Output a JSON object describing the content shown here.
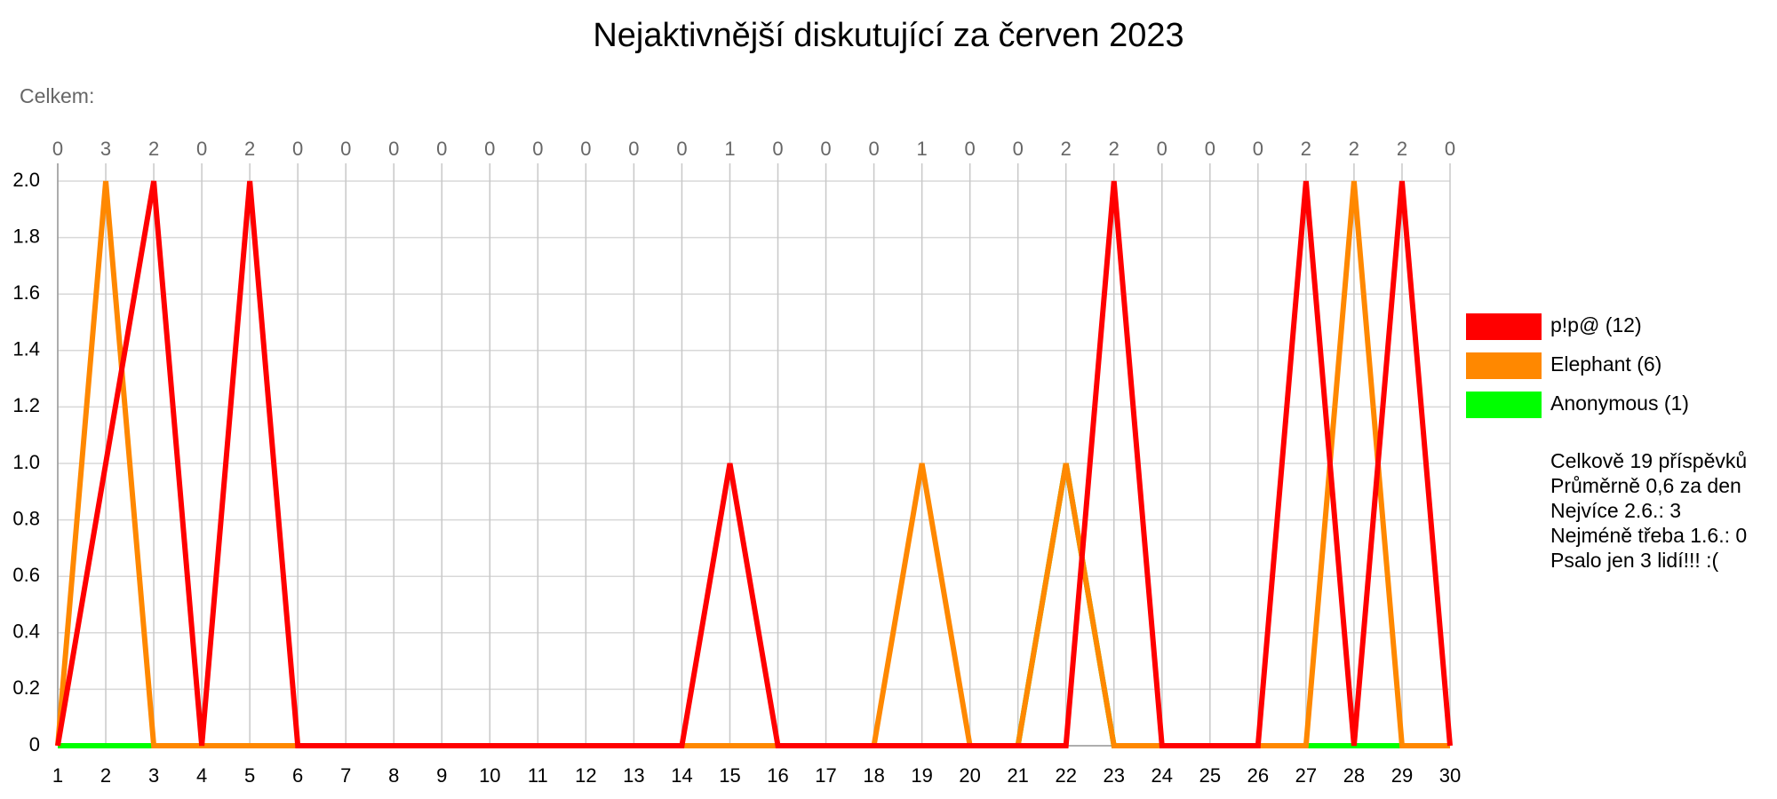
{
  "chart_data": {
    "type": "line",
    "title": "Nejaktivnější diskutující za červen 2023",
    "subtitle": "Celkem:",
    "x": [
      1,
      2,
      3,
      4,
      5,
      6,
      7,
      8,
      9,
      10,
      11,
      12,
      13,
      14,
      15,
      16,
      17,
      18,
      19,
      20,
      21,
      22,
      23,
      24,
      25,
      26,
      27,
      28,
      29,
      30
    ],
    "totals": [
      0,
      3,
      2,
      0,
      2,
      0,
      0,
      0,
      0,
      0,
      0,
      0,
      0,
      0,
      1,
      0,
      0,
      0,
      1,
      0,
      0,
      2,
      2,
      0,
      0,
      0,
      2,
      2,
      2,
      0
    ],
    "xlim": [
      1,
      30
    ],
    "ylim": [
      0,
      2
    ],
    "yticks": [
      0,
      0.2,
      0.4,
      0.6,
      0.8,
      {
        "value": 1,
        "label": "1.0"
      },
      1.2,
      1.4,
      1.6,
      1.8,
      {
        "value": 2,
        "label": "2.0"
      }
    ],
    "grid": true,
    "legend": "right",
    "series": [
      {
        "name": "Anonymous (1)",
        "color": "#00ff00",
        "values": [
          0,
          0,
          0,
          0,
          0,
          0,
          0,
          0,
          0,
          0,
          0,
          0,
          0,
          0,
          0,
          0,
          0,
          0,
          0,
          0,
          0,
          1,
          0,
          0,
          0,
          0,
          0,
          0,
          0,
          0
        ]
      },
      {
        "name": "Elephant (6)",
        "color": "#ff8800",
        "values": [
          0,
          2,
          0,
          0,
          0,
          0,
          0,
          0,
          0,
          0,
          0,
          0,
          0,
          0,
          0,
          0,
          0,
          0,
          1,
          0,
          0,
          1,
          0,
          0,
          0,
          0,
          0,
          2,
          0,
          0
        ]
      },
      {
        "name": "p!p@ (12)",
        "color": "#ff0000",
        "values": [
          0,
          1,
          2,
          0,
          2,
          0,
          0,
          0,
          0,
          0,
          0,
          0,
          0,
          0,
          1,
          0,
          0,
          0,
          0,
          0,
          0,
          0,
          2,
          0,
          0,
          0,
          2,
          0,
          2,
          0
        ]
      }
    ],
    "stats": [
      "Celkově 19 příspěvků",
      "Průměrně 0,6 za den",
      "Nejvíce 2.6.: 3",
      "Nejméně třeba 1.6.: 0",
      "Psalo jen 3 lidí!!! :("
    ]
  }
}
